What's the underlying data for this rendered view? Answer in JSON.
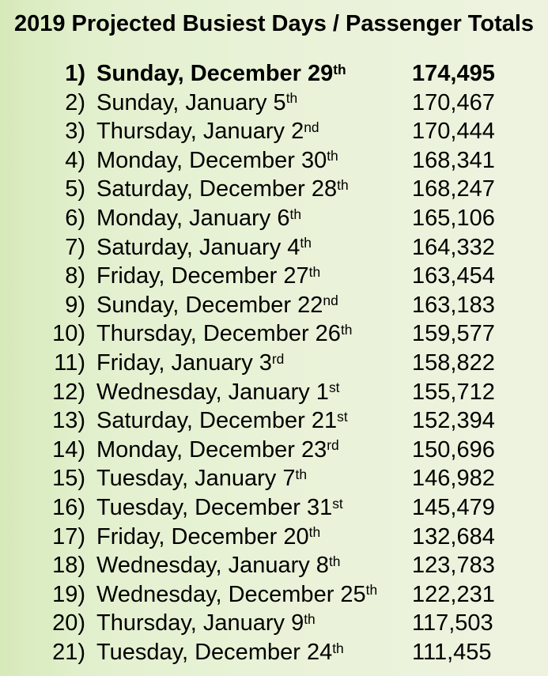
{
  "page": {
    "background_left_color": "#d6e9b8",
    "background_right_color": "#eef3e0",
    "text_color": "#000000"
  },
  "chart_data": {
    "type": "table",
    "title": "2019 Projected Busiest Days / Passenger Totals",
    "legend_position": "none",
    "grid": false,
    "rows": [
      {
        "rank": "1)",
        "day": "Sunday, December 29",
        "ordinal": "th",
        "total": "174,495",
        "value": 174495,
        "bold": true
      },
      {
        "rank": "2)",
        "day": "Sunday, January 5",
        "ordinal": "th",
        "total": "170,467",
        "value": 170467,
        "bold": false
      },
      {
        "rank": "3)",
        "day": "Thursday, January 2",
        "ordinal": "nd",
        "total": "170,444",
        "value": 170444,
        "bold": false
      },
      {
        "rank": "4)",
        "day": "Monday, December 30",
        "ordinal": "th",
        "total": "168,341",
        "value": 168341,
        "bold": false
      },
      {
        "rank": "5)",
        "day": "Saturday, December 28",
        "ordinal": "th",
        "total": "168,247",
        "value": 168247,
        "bold": false
      },
      {
        "rank": "6)",
        "day": "Monday, January 6",
        "ordinal": "th",
        "total": "165,106",
        "value": 165106,
        "bold": false
      },
      {
        "rank": "7)",
        "day": "Saturday, January 4",
        "ordinal": "th",
        "total": "164,332",
        "value": 164332,
        "bold": false
      },
      {
        "rank": "8)",
        "day": "Friday, December 27",
        "ordinal": "th",
        "total": "163,454",
        "value": 163454,
        "bold": false
      },
      {
        "rank": "9)",
        "day": "Sunday, December 22",
        "ordinal": "nd",
        "total": "163,183",
        "value": 163183,
        "bold": false
      },
      {
        "rank": "10)",
        "day": "Thursday, December 26",
        "ordinal": "th",
        "total": "159,577",
        "value": 159577,
        "bold": false
      },
      {
        "rank": "11)",
        "day": "Friday, January 3",
        "ordinal": "rd",
        "total": "158,822",
        "value": 158822,
        "bold": false
      },
      {
        "rank": "12)",
        "day": "Wednesday, January 1",
        "ordinal": "st",
        "total": "155,712",
        "value": 155712,
        "bold": false
      },
      {
        "rank": "13)",
        "day": "Saturday, December 21",
        "ordinal": "st",
        "total": "152,394",
        "value": 152394,
        "bold": false
      },
      {
        "rank": "14)",
        "day": "Monday, December 23",
        "ordinal": "rd",
        "total": "150,696",
        "value": 150696,
        "bold": false
      },
      {
        "rank": "15)",
        "day": "Tuesday, January 7",
        "ordinal": "th",
        "total": "146,982",
        "value": 146982,
        "bold": false
      },
      {
        "rank": "16)",
        "day": "Tuesday, December 31",
        "ordinal": "st",
        "total": "145,479",
        "value": 145479,
        "bold": false
      },
      {
        "rank": "17)",
        "day": "Friday, December 20",
        "ordinal": "th",
        "total": "132,684",
        "value": 132684,
        "bold": false
      },
      {
        "rank": "18)",
        "day": "Wednesday, January 8",
        "ordinal": "th",
        "total": "123,783",
        "value": 123783,
        "bold": false
      },
      {
        "rank": "19)",
        "day": "Wednesday, December 25",
        "ordinal": "th",
        "total": "122,231",
        "value": 122231,
        "bold": false
      },
      {
        "rank": "20)",
        "day": "Thursday, January 9",
        "ordinal": "th",
        "total": "117,503",
        "value": 117503,
        "bold": false
      },
      {
        "rank": "21)",
        "day": "Tuesday, December 24",
        "ordinal": "th",
        "total": "111,455",
        "value": 111455,
        "bold": false
      }
    ]
  }
}
